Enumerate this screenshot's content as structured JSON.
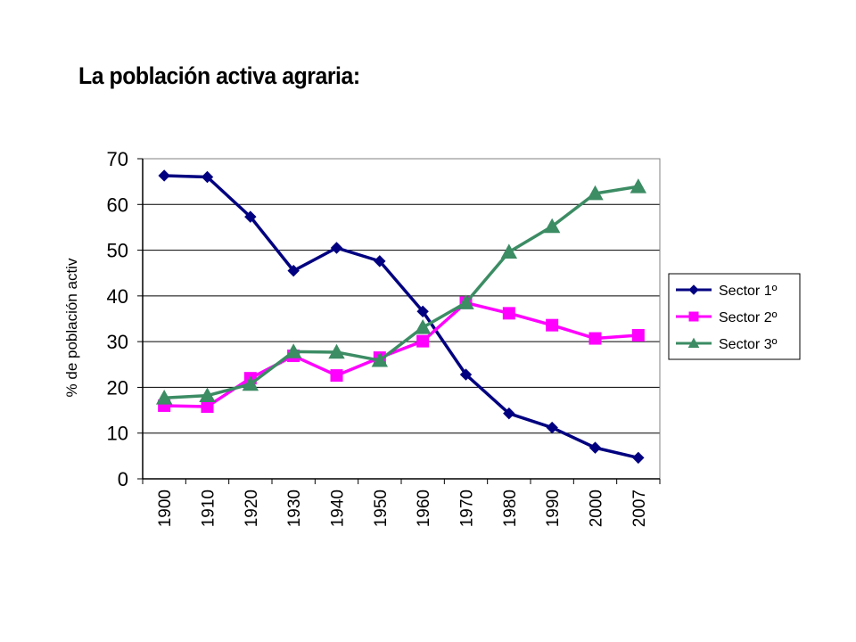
{
  "slide": {
    "title": "La población activa agraria:"
  },
  "chart_data": {
    "type": "line",
    "title": "",
    "xlabel": "",
    "ylabel": "% de población activ",
    "categories": [
      "1900",
      "1910",
      "1920",
      "1930",
      "1940",
      "1950",
      "1960",
      "1970",
      "1980",
      "1990",
      "2000",
      "2007"
    ],
    "ylim": [
      0,
      70
    ],
    "yticks": [
      0,
      10,
      20,
      30,
      40,
      50,
      60,
      70
    ],
    "grid": true,
    "legend_position": "right",
    "series": [
      {
        "name": "Sector 1º",
        "marker": "diamond",
        "color": "#000080",
        "values": [
          66.3,
          66.0,
          57.3,
          45.5,
          50.5,
          47.6,
          36.6,
          22.8,
          14.3,
          11.2,
          6.8,
          4.6
        ]
      },
      {
        "name": "Sector 2º",
        "marker": "square",
        "color": "#FF00FF",
        "values": [
          16.0,
          15.8,
          22.0,
          26.9,
          22.6,
          26.5,
          30.1,
          38.5,
          36.2,
          33.6,
          30.7,
          31.4
        ]
      },
      {
        "name": "Sector 3º",
        "marker": "triangle",
        "color": "#3C8C64",
        "values": [
          17.7,
          18.2,
          20.7,
          27.8,
          27.7,
          25.9,
          33.1,
          38.5,
          49.6,
          55.2,
          62.4,
          63.9
        ]
      }
    ]
  }
}
